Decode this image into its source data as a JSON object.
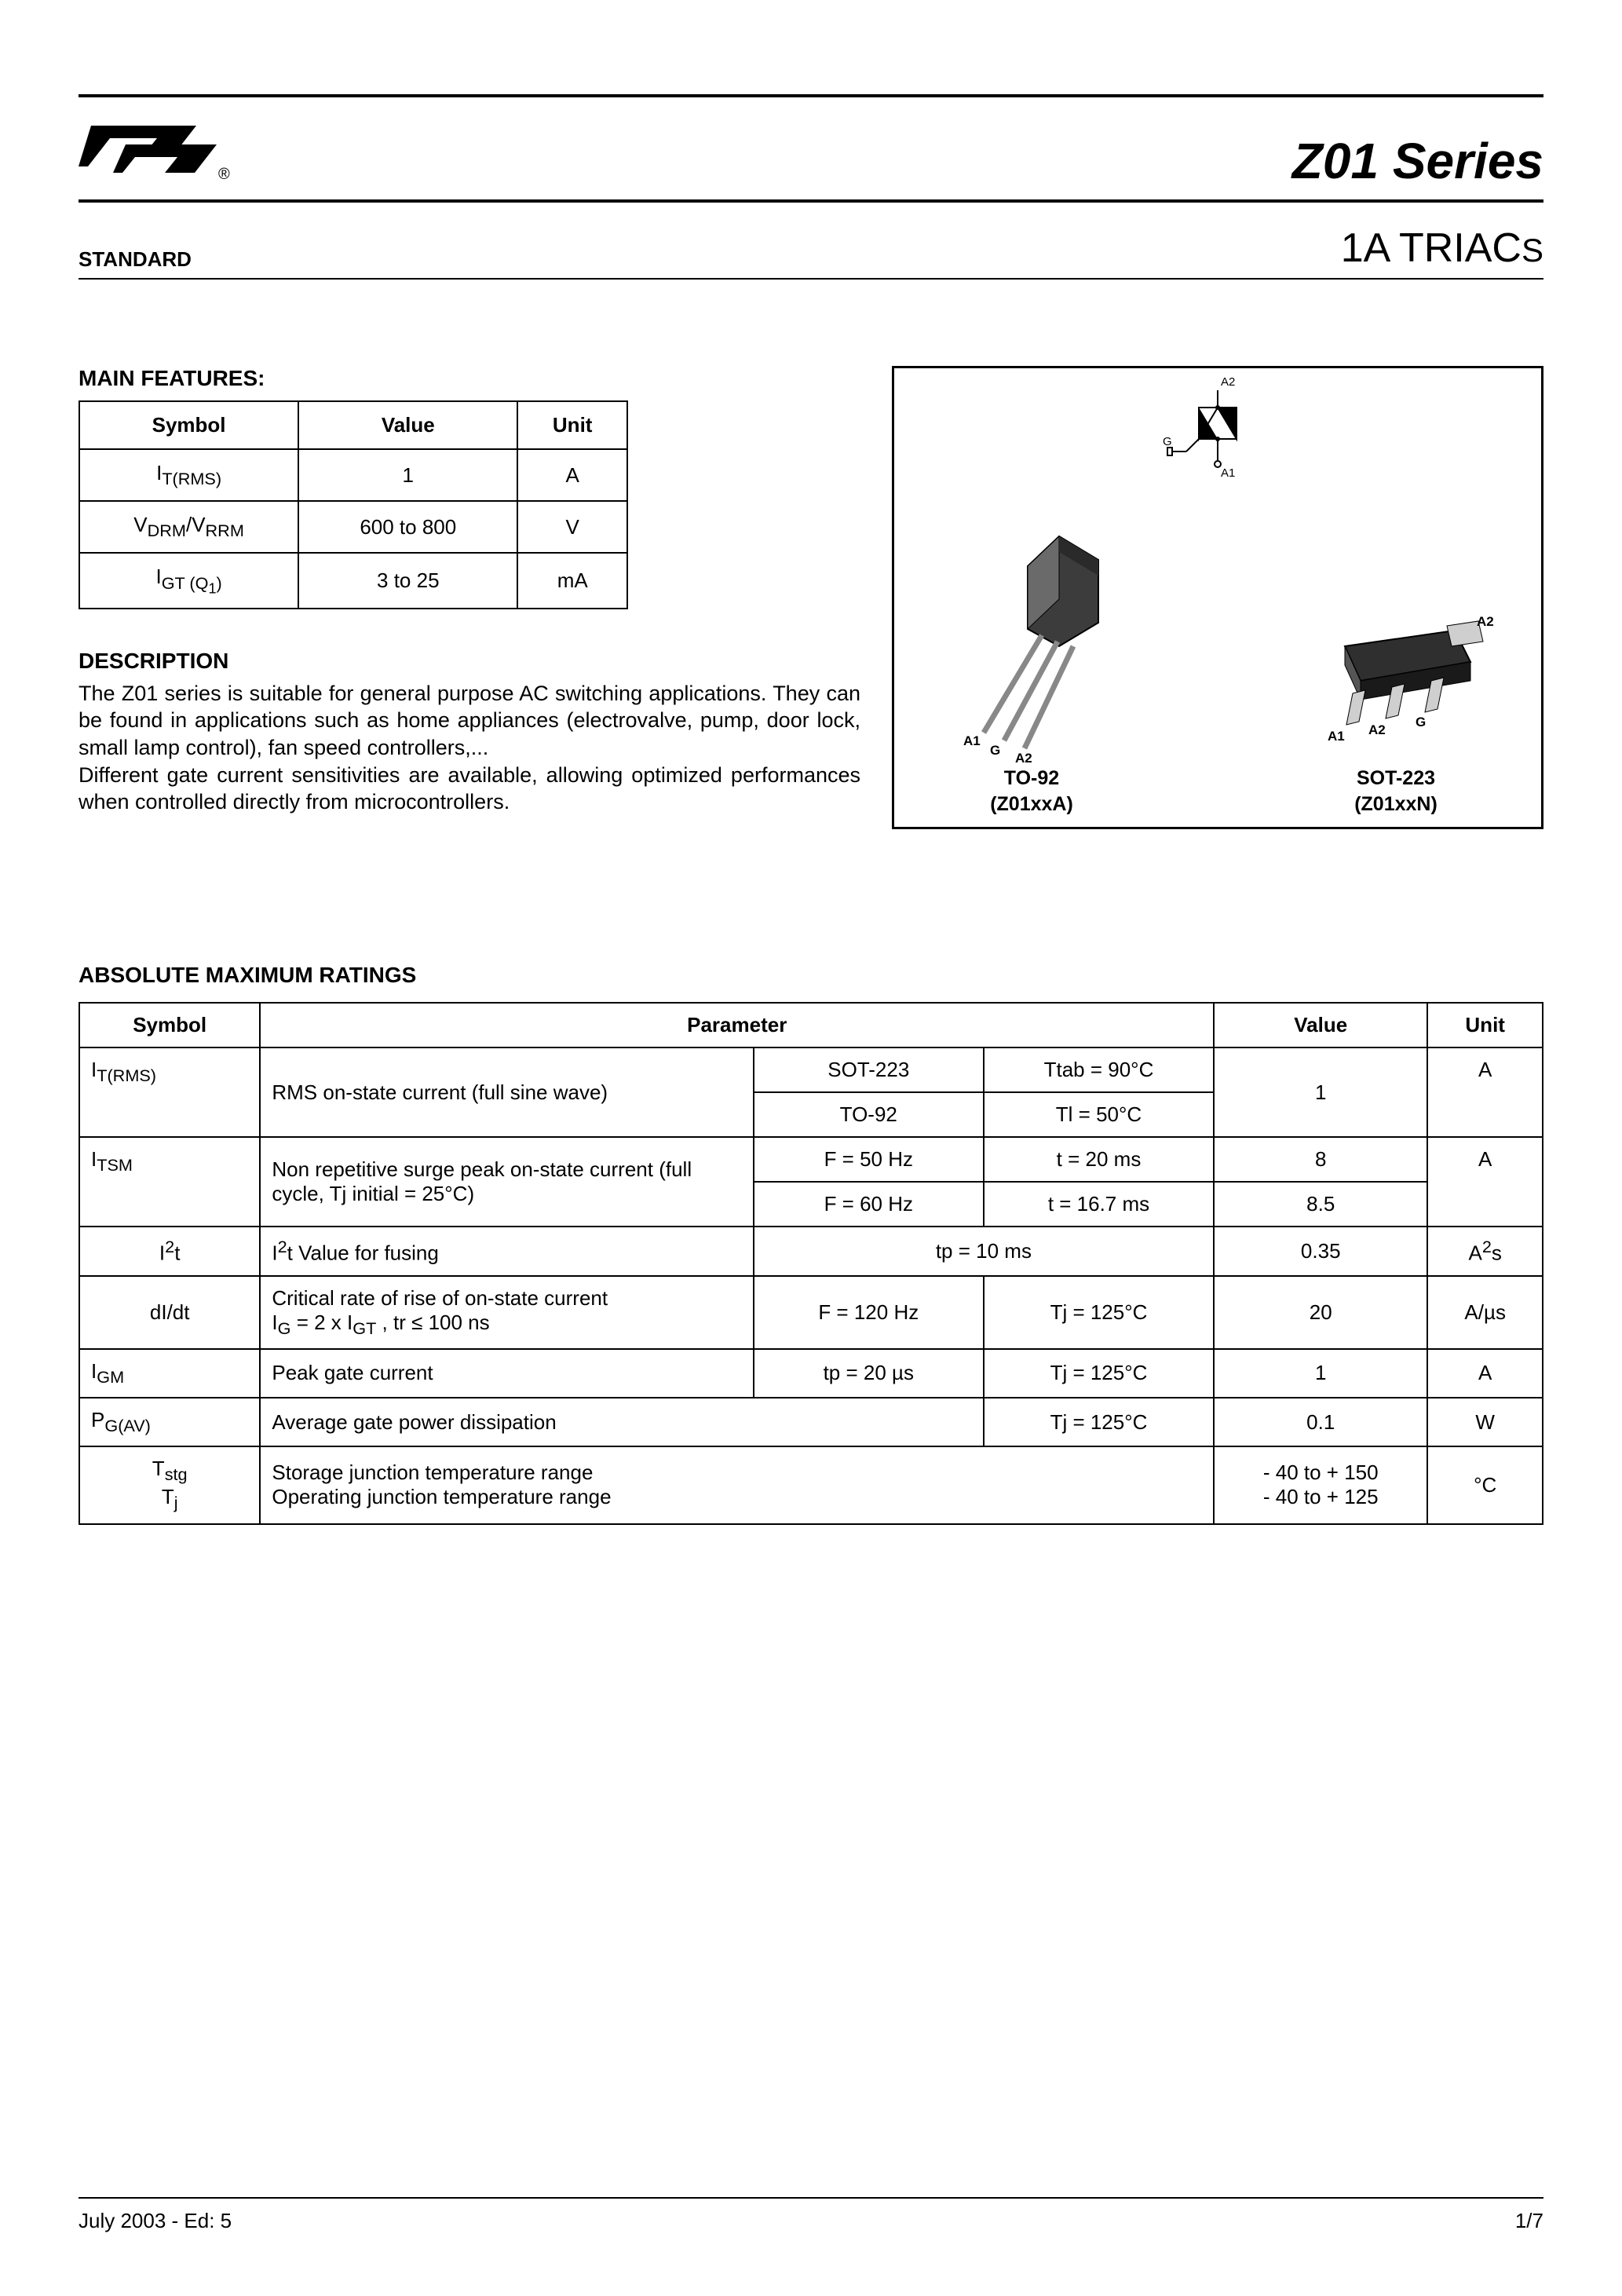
{
  "header": {
    "product_title": "Z01 Series",
    "standard_label": "STANDARD",
    "subtitle_main": "1A TRIAC",
    "subtitle_suffix": "S"
  },
  "main_features": {
    "heading": "MAIN FEATURES:",
    "columns": [
      "Symbol",
      "Value",
      "Unit"
    ],
    "rows": [
      {
        "symbol_html": "I<sub>T(RMS)</sub>",
        "value": "1",
        "unit": "A"
      },
      {
        "symbol_html": "V<sub>DRM</sub>/V<sub>RRM</sub>",
        "value": "600 to 800",
        "unit": "V"
      },
      {
        "symbol_html": "I<sub>GT (Q<sub>1</sub>)</sub>",
        "value": "3 to 25",
        "unit": "mA"
      }
    ]
  },
  "description": {
    "heading": "DESCRIPTION",
    "body": "The Z01 series is suitable for general purpose AC switching applications. They can be found in applications such as home appliances (electrovalve, pump, door lock, small lamp control), fan speed controllers,...\nDifferent gate current sensitivities are available, allowing optimized performances when controlled directly from microcontrollers."
  },
  "packages": {
    "symbol_top_label": "A2",
    "symbol_bottom_label": "A1",
    "symbol_gate_label": "G",
    "to92": {
      "name": "TO-92",
      "code": "(Z01xxA)",
      "pins": [
        "A1",
        "G",
        "A2"
      ]
    },
    "sot223": {
      "name": "SOT-223",
      "code": "(Z01xxN)",
      "pins_tab": "A2",
      "pins": [
        "A1",
        "A2",
        "G"
      ]
    }
  },
  "ratings": {
    "heading": "ABSOLUTE MAXIMUM RATINGS",
    "columns": [
      "Symbol",
      "Parameter",
      "Value",
      "Unit"
    ],
    "rows": {
      "itrms": {
        "symbol_html": "I<sub>T(RMS)</sub>",
        "param": "RMS on-state current (full sine wave)",
        "cond1a": "SOT-223",
        "cond1b": "Ttab = 90°C",
        "cond2a": "TO-92",
        "cond2b": "Tl = 50°C",
        "value": "1",
        "unit": "A"
      },
      "itsm": {
        "symbol_html": "I<sub>TSM</sub>",
        "param": "Non repetitive surge peak on-state current  (full cycle, Tj initial = 25°C)",
        "cond1a": "F = 50 Hz",
        "cond1b": "t = 20 ms",
        "val1": "8",
        "cond2a": "F = 60 Hz",
        "cond2b": "t = 16.7 ms",
        "val2": "8.5",
        "unit": "A"
      },
      "i2t": {
        "symbol_html": "I<sup>2</sup>t",
        "param_html": "I<sup>2</sup>t Value for fusing",
        "cond": "tp = 10 ms",
        "value": "0.35",
        "unit_html": "A<sup>2</sup>s"
      },
      "didt": {
        "symbol": "dI/dt",
        "param_html": "Critical rate of rise of on-state current<br>I<sub>G</sub> = 2 x I<sub>GT</sub> , tr ≤ 100 ns",
        "cond1": "F = 120 Hz",
        "cond2": "Tj = 125°C",
        "value": "20",
        "unit": "A/µs"
      },
      "igm": {
        "symbol_html": "I<sub>GM</sub>",
        "param": "Peak gate current",
        "cond1": "tp = 20 µs",
        "cond2": "Tj = 125°C",
        "value": "1",
        "unit": "A"
      },
      "pgav": {
        "symbol_html": "P<sub>G(AV)</sub>",
        "param": "Average gate power dissipation",
        "cond": "Tj = 125°C",
        "value": "0.1",
        "unit": "W"
      },
      "temp": {
        "symbol_html": "T<sub>stg</sub><br>T<sub>j</sub>",
        "param": "Storage junction temperature range\nOperating junction temperature range",
        "value": "- 40 to + 150\n- 40 to + 125",
        "unit": "°C"
      }
    }
  },
  "footer": {
    "left": "July 2003 - Ed: 5",
    "right": "1/7"
  },
  "colors": {
    "text": "#000000",
    "background": "#ffffff",
    "border": "#000000",
    "package_fill": "#4a4a4a",
    "package_light": "#d8d8d8"
  }
}
